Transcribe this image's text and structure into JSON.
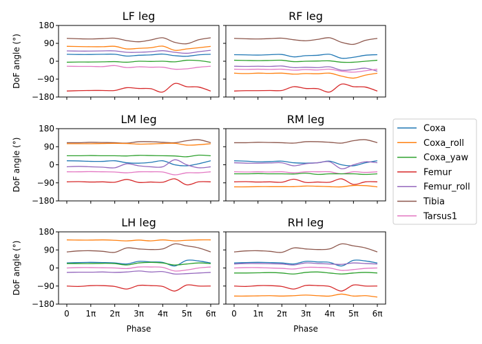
{
  "chart_data": {
    "type": "line",
    "grid": false,
    "legend_placement": "right",
    "legend": [
      "Coxa",
      "Coxa_roll",
      "Coxa_yaw",
      "Femur",
      "Femur_roll",
      "Tibia",
      "Tarsus1"
    ],
    "colors": {
      "Coxa": "#1f77b4",
      "Coxa_roll": "#ff7f0e",
      "Coxa_yaw": "#2ca02c",
      "Femur": "#d62728",
      "Femur_roll": "#9467bd",
      "Tibia": "#8c564b",
      "Tarsus1": "#e377c2"
    },
    "xlabel": "Phase",
    "ylabel": "DoF angle (°)",
    "x_unit": "π",
    "xticks": [
      "0",
      "1π",
      "2π",
      "3π",
      "4π",
      "5π",
      "6π"
    ],
    "yticks": [
      "−180",
      "−90",
      "0",
      "90",
      "180"
    ],
    "xlim": [
      0,
      6
    ],
    "ylim": [
      -180,
      180
    ],
    "x": [
      0,
      0.5,
      1,
      1.5,
      2,
      2.5,
      3,
      3.5,
      4,
      4.5,
      5,
      5.5,
      6
    ],
    "panels": [
      {
        "title": "LF leg",
        "series": {
          "Tibia": [
            115,
            113,
            112,
            114,
            116,
            104,
            98,
            107,
            118,
            95,
            88,
            108,
            118
          ],
          "Coxa_roll": [
            75,
            74,
            73,
            73,
            75,
            62,
            65,
            68,
            76,
            55,
            62,
            68,
            75
          ],
          "Femur_roll": [
            52,
            51,
            51,
            52,
            52,
            45,
            45,
            48,
            53,
            45,
            40,
            48,
            55
          ],
          "Coxa": [
            35,
            34,
            34,
            35,
            35,
            26,
            30,
            32,
            36,
            28,
            25,
            32,
            35
          ],
          "Coxa_yaw": [
            -5,
            -4,
            -4,
            -3,
            -2,
            -5,
            0,
            -1,
            0,
            -3,
            5,
            3,
            -5
          ],
          "Tarsus1": [
            -25,
            -26,
            -26,
            -27,
            -22,
            -32,
            -28,
            -30,
            -30,
            -40,
            -38,
            -30,
            -25
          ],
          "Femur": [
            -150,
            -148,
            -147,
            -147,
            -147,
            -133,
            -137,
            -138,
            -155,
            -112,
            -128,
            -130,
            -150
          ]
        }
      },
      {
        "title": "RF leg",
        "series": {
          "Tibia": [
            115,
            113,
            112,
            114,
            116,
            108,
            103,
            110,
            118,
            95,
            85,
            105,
            115
          ],
          "Coxa": [
            33,
            32,
            31,
            33,
            34,
            22,
            28,
            30,
            35,
            15,
            20,
            30,
            33
          ],
          "Coxa_yaw": [
            5,
            4,
            3,
            4,
            5,
            -2,
            0,
            1,
            2,
            -5,
            -5,
            0,
            5
          ],
          "Femur_roll": [
            -25,
            -26,
            -25,
            -26,
            -24,
            -32,
            -30,
            -32,
            -28,
            -45,
            -42,
            -35,
            -50
          ],
          "Tarsus1": [
            -40,
            -41,
            -40,
            -41,
            -40,
            -45,
            -42,
            -44,
            -40,
            -50,
            -55,
            -48,
            -40
          ],
          "Coxa_roll": [
            -60,
            -62,
            -60,
            -61,
            -60,
            -65,
            -62,
            -63,
            -60,
            -75,
            -85,
            -70,
            -60
          ],
          "Femur": [
            -150,
            -148,
            -148,
            -147,
            -147,
            -128,
            -137,
            -138,
            -155,
            -115,
            -128,
            -130,
            -150
          ]
        }
      },
      {
        "title": "LM leg",
        "series": {
          "Tibia": [
            110,
            110,
            112,
            111,
            110,
            108,
            115,
            115,
            112,
            110,
            120,
            125,
            110
          ],
          "Coxa_roll": [
            105,
            105,
            105,
            106,
            107,
            106,
            103,
            104,
            106,
            107,
            98,
            100,
            105
          ],
          "Coxa_yaw": [
            45,
            45,
            46,
            45,
            45,
            44,
            47,
            46,
            45,
            44,
            40,
            48,
            45
          ],
          "Coxa": [
            20,
            19,
            17,
            17,
            20,
            10,
            8,
            12,
            20,
            0,
            -5,
            5,
            20
          ],
          "Femur_roll": [
            -10,
            -8,
            -10,
            -12,
            -15,
            5,
            -5,
            -10,
            -10,
            25,
            0,
            -15,
            -10
          ],
          "Tarsus1": [
            -35,
            -35,
            -34,
            -35,
            -36,
            -40,
            -35,
            -35,
            -36,
            -50,
            -40,
            -40,
            -35
          ],
          "Femur": [
            -85,
            -84,
            -86,
            -85,
            -87,
            -73,
            -88,
            -86,
            -87,
            -70,
            -100,
            -85,
            -85
          ]
        }
      },
      {
        "title": "RM leg",
        "series": {
          "Tibia": [
            110,
            110,
            112,
            111,
            110,
            108,
            115,
            115,
            112,
            108,
            120,
            125,
            110
          ],
          "Coxa": [
            20,
            18,
            15,
            16,
            18,
            10,
            8,
            10,
            18,
            0,
            -5,
            10,
            20
          ],
          "Femur_roll": [
            10,
            8,
            8,
            9,
            10,
            -5,
            5,
            10,
            15,
            -20,
            0,
            15,
            10
          ],
          "Tarsus1": [
            -35,
            -36,
            -35,
            -36,
            -35,
            -40,
            -35,
            -35,
            -35,
            -45,
            -35,
            -38,
            -35
          ],
          "Coxa_yaw": [
            -45,
            -45,
            -44,
            -45,
            -45,
            -46,
            -42,
            -48,
            -45,
            -45,
            -45,
            -48,
            -45
          ],
          "Femur": [
            -85,
            -84,
            -86,
            -85,
            -87,
            -72,
            -88,
            -86,
            -87,
            -70,
            -98,
            -85,
            -85
          ],
          "Coxa_roll": [
            -110,
            -110,
            -109,
            -109,
            -109,
            -109,
            -106,
            -107,
            -109,
            -110,
            -103,
            -104,
            -110
          ]
        }
      },
      {
        "title": "LH leg",
        "series": {
          "Coxa_roll": [
            140,
            139,
            139,
            140,
            138,
            135,
            139,
            135,
            140,
            135,
            138,
            140,
            140
          ],
          "Tibia": [
            80,
            85,
            86,
            83,
            78,
            100,
            95,
            92,
            95,
            120,
            110,
            100,
            80
          ],
          "Coxa": [
            25,
            27,
            28,
            27,
            25,
            20,
            33,
            30,
            28,
            10,
            38,
            35,
            25
          ],
          "Coxa_yaw": [
            22,
            22,
            22,
            23,
            22,
            15,
            25,
            28,
            25,
            15,
            20,
            25,
            22
          ],
          "Tarsus1": [
            0,
            2,
            2,
            1,
            0,
            -3,
            5,
            5,
            3,
            -15,
            -10,
            0,
            5
          ],
          "Femur_roll": [
            -22,
            -21,
            -21,
            -20,
            -22,
            -20,
            -15,
            -20,
            -18,
            -30,
            -28,
            -25,
            -22
          ],
          "Femur": [
            -90,
            -92,
            -88,
            -88,
            -92,
            -105,
            -87,
            -88,
            -92,
            -115,
            -85,
            -90,
            -90
          ]
        }
      },
      {
        "title": "RH leg",
        "series": {
          "Tibia": [
            80,
            85,
            86,
            83,
            78,
            100,
            95,
            92,
            95,
            120,
            110,
            100,
            80
          ],
          "Coxa": [
            25,
            27,
            28,
            27,
            25,
            20,
            33,
            30,
            28,
            10,
            38,
            35,
            25
          ],
          "Femur_roll": [
            20,
            22,
            22,
            21,
            20,
            15,
            25,
            22,
            20,
            18,
            25,
            22,
            20
          ],
          "Tarsus1": [
            0,
            2,
            2,
            0,
            -2,
            -5,
            3,
            3,
            0,
            -12,
            -8,
            -2,
            0
          ],
          "Coxa_yaw": [
            -25,
            -25,
            -24,
            -23,
            -25,
            -30,
            -22,
            -20,
            -25,
            -30,
            -25,
            -22,
            -25
          ],
          "Femur": [
            -90,
            -92,
            -88,
            -88,
            -92,
            -105,
            -87,
            -88,
            -92,
            -115,
            -85,
            -90,
            -90
          ],
          "Coxa_roll": [
            -140,
            -140,
            -139,
            -138,
            -140,
            -138,
            -135,
            -138,
            -140,
            -130,
            -140,
            -138,
            -145
          ]
        }
      }
    ]
  }
}
